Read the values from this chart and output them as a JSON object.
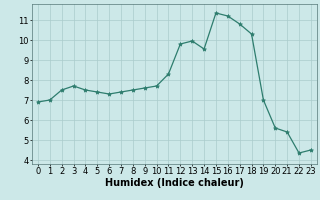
{
  "x": [
    0,
    1,
    2,
    3,
    4,
    5,
    6,
    7,
    8,
    9,
    10,
    11,
    12,
    13,
    14,
    15,
    16,
    17,
    18,
    19,
    20,
    21,
    22,
    23
  ],
  "y": [
    6.9,
    7.0,
    7.5,
    7.7,
    7.5,
    7.4,
    7.3,
    7.4,
    7.5,
    7.6,
    7.7,
    8.3,
    9.8,
    9.95,
    9.55,
    11.35,
    11.2,
    10.8,
    10.3,
    7.0,
    5.6,
    5.4,
    4.35,
    4.5
  ],
  "title": "",
  "xlabel": "Humidex (Indice chaleur)",
  "ylabel": "",
  "xlim": [
    -0.5,
    23.5
  ],
  "ylim": [
    3.8,
    11.8
  ],
  "yticks": [
    4,
    5,
    6,
    7,
    8,
    9,
    10,
    11
  ],
  "xticks": [
    0,
    1,
    2,
    3,
    4,
    5,
    6,
    7,
    8,
    9,
    10,
    11,
    12,
    13,
    14,
    15,
    16,
    17,
    18,
    19,
    20,
    21,
    22,
    23
  ],
  "line_color": "#2e7d6e",
  "marker_color": "#2e7d6e",
  "bg_color": "#cce8e8",
  "grid_color": "#aacccc",
  "label_fontsize": 7,
  "tick_fontsize": 6
}
